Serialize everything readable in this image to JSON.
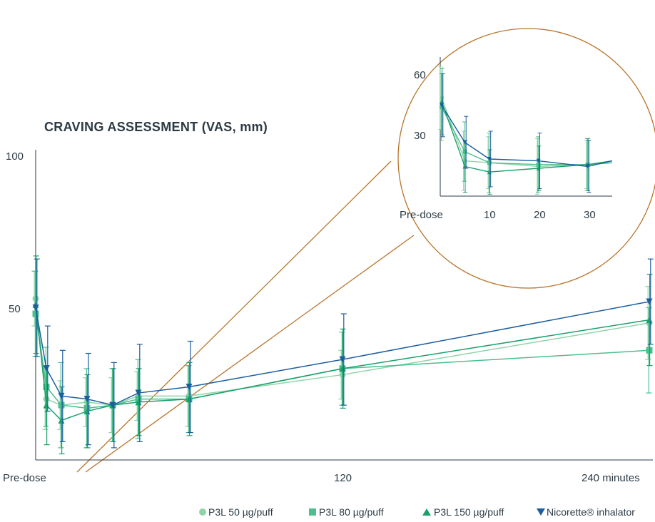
{
  "chart_data": [
    {
      "type": "line",
      "title": "CRAVING ASSESSMENT (VAS, mm)",
      "xlabel": "",
      "ylabel": "",
      "ylim": [
        0,
        100
      ],
      "xlim": [
        0,
        240
      ],
      "y_ticks": [
        {
          "value": 50,
          "label": "50"
        },
        {
          "value": 100,
          "label": "100"
        }
      ],
      "x_ticks": [
        {
          "value": 0,
          "label": "Pre-dose"
        },
        {
          "value": 120,
          "label": "120"
        },
        {
          "value": 240,
          "label": "240 minutes"
        }
      ],
      "grid": false,
      "legend_position": "bottom-right",
      "series": [
        {
          "name": "P3L 50 µg/puff",
          "marker": "circle",
          "color": "#8fd4a8",
          "x": [
            0,
            5,
            10,
            20,
            30,
            40,
            60,
            120,
            240
          ],
          "y": [
            53,
            20,
            18,
            19,
            18,
            21,
            21,
            28,
            45
          ],
          "err": [
            9,
            10,
            8,
            8,
            9,
            8,
            10,
            8,
            12
          ]
        },
        {
          "name": "P3L 80 µg/puff",
          "marker": "square",
          "color": "#4cbf8f",
          "x": [
            0,
            5,
            10,
            20,
            30,
            40,
            60,
            120,
            240
          ],
          "y": [
            48,
            24,
            18,
            17,
            18,
            20,
            20,
            30,
            36
          ],
          "err": [
            14,
            13,
            14,
            13,
            12,
            13,
            11,
            12,
            14
          ]
        },
        {
          "name": "P3L 150 µg/puff",
          "marker": "triangle-up",
          "color": "#1aa06a",
          "x": [
            0,
            5,
            10,
            20,
            30,
            40,
            60,
            120,
            240
          ],
          "y": [
            51,
            18,
            13,
            16,
            18,
            19,
            20,
            30,
            46
          ],
          "err": [
            16,
            13,
            11,
            12,
            12,
            11,
            12,
            13,
            15
          ]
        },
        {
          "name": "Nicorette® inhalator",
          "marker": "triangle-down",
          "color": "#1b5e9e",
          "x": [
            0,
            5,
            10,
            20,
            30,
            40,
            60,
            120,
            240
          ],
          "y": [
            50,
            30,
            21,
            20,
            18,
            22,
            24,
            33,
            52
          ],
          "err": [
            16,
            14,
            15,
            15,
            14,
            16,
            15,
            15,
            14
          ]
        }
      ]
    },
    {
      "type": "line",
      "title": "",
      "ylim": [
        0,
        75
      ],
      "xlim": [
        0,
        35
      ],
      "y_ticks": [
        {
          "value": 30,
          "label": "30"
        },
        {
          "value": 60,
          "label": "60"
        }
      ],
      "x_ticks": [
        {
          "value": 0,
          "label": "Pre-dose"
        },
        {
          "value": 10,
          "label": "10"
        },
        {
          "value": 20,
          "label": "20"
        },
        {
          "value": 30,
          "label": "30"
        }
      ],
      "series": [
        {
          "name": "P3L 50 µg/puff",
          "x": [
            0,
            5,
            10,
            20,
            30,
            35
          ],
          "y": [
            53,
            19,
            18,
            16,
            17,
            18
          ],
          "err": [
            17,
            16,
            14,
            15,
            13,
            0
          ]
        },
        {
          "name": "P3L 80 µg/puff",
          "x": [
            0,
            5,
            10,
            20,
            30,
            35
          ],
          "y": [
            48,
            24,
            18,
            17,
            17,
            18
          ],
          "err": [
            18,
            16,
            16,
            15,
            14,
            0
          ]
        },
        {
          "name": "P3L 150 µg/puff",
          "x": [
            0,
            5,
            10,
            20,
            30,
            35
          ],
          "y": [
            51,
            16,
            13,
            15,
            17,
            19
          ],
          "err": [
            18,
            14,
            12,
            12,
            14,
            0
          ]
        },
        {
          "name": "Nicorette® inhalator",
          "x": [
            0,
            5,
            10,
            20,
            30,
            35
          ],
          "y": [
            49,
            29,
            20,
            19,
            16,
            19
          ],
          "err": [
            17,
            14,
            15,
            15,
            14,
            0
          ]
        }
      ]
    }
  ]
}
